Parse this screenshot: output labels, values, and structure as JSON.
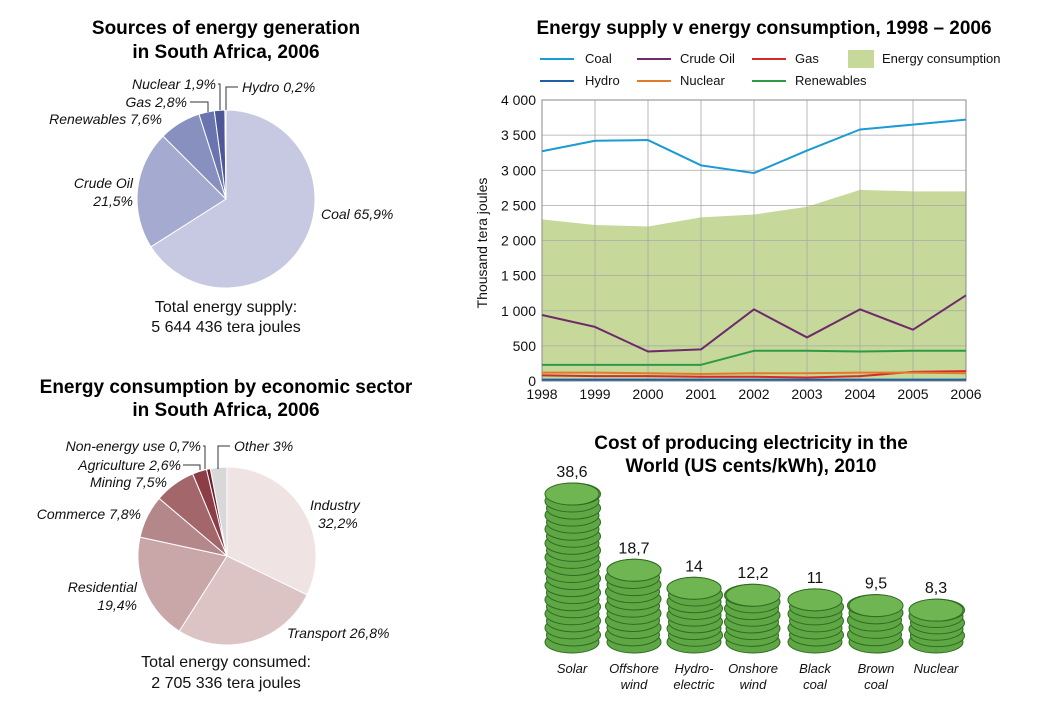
{
  "chart_data": [
    {
      "type": "pie",
      "title_lines": [
        "Sources of energy generation",
        "in South Africa, 2006"
      ],
      "slices": [
        {
          "label": "Coal 65,9%",
          "value": 65.9,
          "color": "#c6c9e1"
        },
        {
          "label": "Crude Oil 21,5%",
          "label_lines": [
            "Crude Oil",
            "21,5%"
          ],
          "value": 21.5,
          "color": "#a5abd0"
        },
        {
          "label": "Renewables 7,6%",
          "value": 7.6,
          "color": "#8790bf"
        },
        {
          "label": "Gas 2,8%",
          "value": 2.8,
          "color": "#6a74ae"
        },
        {
          "label": "Nuclear 1,9%",
          "value": 1.9,
          "color": "#4e5898"
        },
        {
          "label": "Hydro 0,2%",
          "value": 0.2,
          "color": "#343e80"
        }
      ],
      "note_lines": [
        "Total energy supply:",
        "5 644 436 tera joules"
      ]
    },
    {
      "type": "line",
      "title": "Energy supply v energy consumption, 1998 – 2006",
      "ylabel": "Thousand tera joules",
      "x": [
        1998,
        1999,
        2000,
        2001,
        2002,
        2003,
        2004,
        2005,
        2006
      ],
      "ylim": [
        0,
        4000
      ],
      "yticks": [
        0,
        500,
        1000,
        1500,
        2000,
        2500,
        3000,
        3500,
        4000
      ],
      "ytick_labels": [
        "0",
        "500",
        "1 000",
        "1 500",
        "2 000",
        "2 500",
        "3 000",
        "3 500",
        "4 000"
      ],
      "grid": true,
      "legend_position": "top",
      "area": {
        "name": "Energy consumption",
        "color": "#c6d99a",
        "values": [
          2300,
          2220,
          2200,
          2330,
          2370,
          2480,
          2720,
          2700,
          2700
        ]
      },
      "series": [
        {
          "name": "Coal",
          "color": "#1b9ad6",
          "values": [
            3270,
            3420,
            3430,
            3070,
            2960,
            3280,
            3580,
            3650,
            3720
          ]
        },
        {
          "name": "Crude Oil",
          "color": "#6e2a6a",
          "values": [
            940,
            770,
            420,
            450,
            1020,
            620,
            1020,
            730,
            1220
          ]
        },
        {
          "name": "Gas",
          "color": "#d62a2a",
          "values": [
            80,
            70,
            70,
            60,
            60,
            50,
            70,
            130,
            140
          ]
        },
        {
          "name": "Hydro",
          "color": "#1f5fa6",
          "values": [
            20,
            20,
            20,
            20,
            20,
            20,
            20,
            20,
            20
          ]
        },
        {
          "name": "Nuclear",
          "color": "#e27b28",
          "values": [
            120,
            120,
            110,
            100,
            110,
            110,
            120,
            120,
            110
          ]
        },
        {
          "name": "Renewables",
          "color": "#2e9a45",
          "values": [
            230,
            230,
            230,
            230,
            430,
            430,
            420,
            430,
            430
          ]
        }
      ]
    },
    {
      "type": "pie",
      "title_lines": [
        "Energy consumption by economic sector",
        "in South Africa, 2006"
      ],
      "slices": [
        {
          "label": "Industry 32,2%",
          "label_lines": [
            "Industry",
            "32,2%"
          ],
          "value": 32.2,
          "color": "#efe3e4"
        },
        {
          "label": "Transport 26,8%",
          "value": 26.8,
          "color": "#dcc3c4"
        },
        {
          "label": "Residential 19,4%",
          "label_lines": [
            "Residential",
            "19,4%"
          ],
          "value": 19.4,
          "color": "#c9a6a8"
        },
        {
          "label": "Commerce 7,8%",
          "value": 7.8,
          "color": "#b4878a"
        },
        {
          "label": "Mining 7,5%",
          "value": 7.5,
          "color": "#a2666b"
        },
        {
          "label": "Agriculture 2,6%",
          "value": 2.6,
          "color": "#8c3d46"
        },
        {
          "label": "Non-energy use 0,7%",
          "value": 0.7,
          "color": "#6e1f2a"
        },
        {
          "label": "Other 3%",
          "value": 3.0,
          "color": "#d8d8d8"
        }
      ],
      "note_lines": [
        "Total energy consumed:",
        "2 705 336 tera joules"
      ]
    },
    {
      "type": "bar",
      "title_lines": [
        "Cost of producing electricity in the",
        "World (US cents/kWh), 2010"
      ],
      "categories": [
        "Solar",
        "Offshore wind",
        "Hydro-electric",
        "Onshore wind",
        "Black coal",
        "Brown coal",
        "Nuclear"
      ],
      "category_lines": [
        [
          "Solar"
        ],
        [
          "Offshore",
          "wind"
        ],
        [
          "Hydro-",
          "electric"
        ],
        [
          "Onshore",
          "wind"
        ],
        [
          "Black",
          "coal"
        ],
        [
          "Brown",
          "coal"
        ],
        [
          "Nuclear"
        ]
      ],
      "values": [
        38.6,
        18.7,
        14,
        12.2,
        11,
        9.5,
        8.3
      ],
      "value_labels": [
        "38,6",
        "18,7",
        "14",
        "12,2",
        "11",
        "9,5",
        "8,3"
      ],
      "mark": "coin stacks",
      "color": "#5fa744"
    }
  ]
}
